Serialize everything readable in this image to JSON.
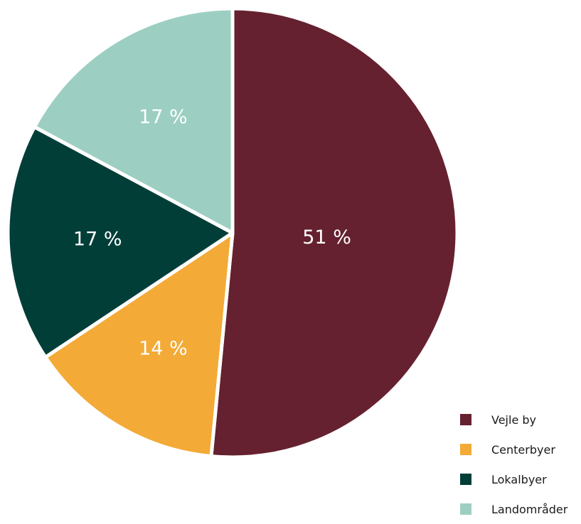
{
  "chart_data": {
    "type": "pie",
    "title": "",
    "slices": [
      {
        "label": "Vejle by",
        "value": 51,
        "value_label": "51 %",
        "color": "#65212f"
      },
      {
        "label": "Centerbyer",
        "value": 14,
        "value_label": "14 %",
        "color": "#f3aa36"
      },
      {
        "label": "Lokalbyer",
        "value": 17,
        "value_label": "17 %",
        "color": "#023e38"
      },
      {
        "label": "Landområder",
        "value": 17,
        "value_label": "17 %",
        "color": "#9ccfc1"
      }
    ],
    "start_angle_deg": 0,
    "direction": "clockwise",
    "legend_placement": "bottom-right"
  }
}
